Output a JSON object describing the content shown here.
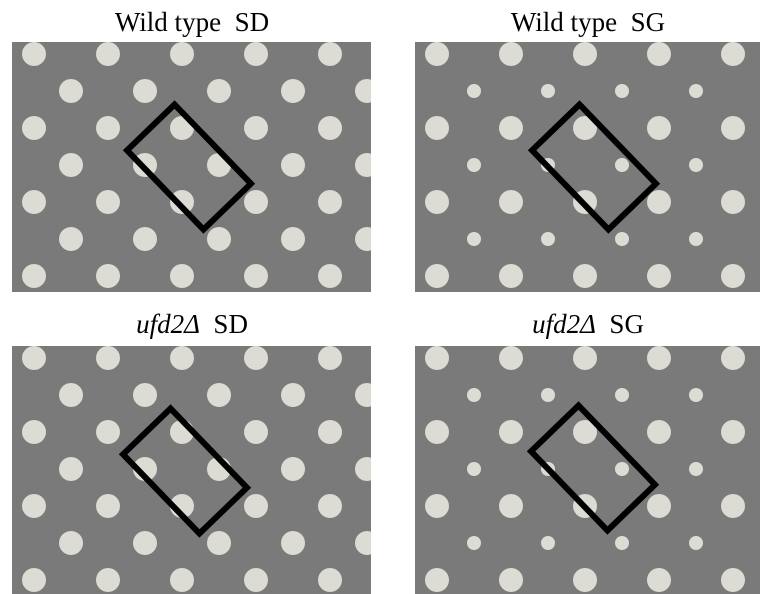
{
  "panels": [
    {
      "genotype": "Wild type",
      "medium": "SD"
    },
    {
      "genotype": "Wild type",
      "medium": "SG"
    },
    {
      "genotype": "ufd2Δ",
      "medium": "SD"
    },
    {
      "genotype": "ufd2Δ",
      "medium": "SG"
    }
  ]
}
